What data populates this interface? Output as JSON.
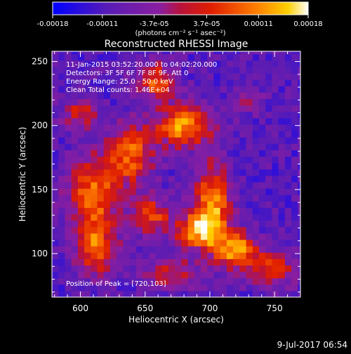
{
  "chart_data": {
    "type": "heatmap",
    "title": "Reconstructed RHESSI Image",
    "xlabel": "Heliocentric X (arcsec)",
    "ylabel": "Heliocentric Y (arcsec)",
    "xlim": [
      578,
      770
    ],
    "ylim": [
      66,
      258
    ],
    "x_ticks": [
      600,
      650,
      700,
      750
    ],
    "y_ticks": [
      100,
      150,
      200,
      250
    ],
    "colorbar": {
      "ticks": [
        "-0.00018",
        "-0.00011",
        "-3.7e-05",
        "3.7e-05",
        "0.00011",
        "0.00018"
      ],
      "tick_values": [
        -0.00018,
        -0.00011,
        -3.7e-05,
        3.7e-05,
        0.00011,
        0.00018
      ],
      "range": [
        -0.00018,
        0.00018
      ],
      "units": "(photons cm⁻² s⁻¹ asec⁻²)",
      "colors": [
        "#0000ff",
        "#5a1cb4",
        "#8a1ea0",
        "#b8123c",
        "#e01e00",
        "#ff8000",
        "#ffd000",
        "#ffffff"
      ]
    },
    "annotations": [
      "11-Jan-2015 03:52:20.000 to 04:02:20.000",
      "Detectors: 3F 5F 6F 7F 8F 9F, Att 0",
      "Energy Range: 25.0 - 50.0 keV",
      "Clean     Total counts: 1.46E+04",
      "Position of Peak = [720,103]"
    ],
    "peak": [
      720,
      103
    ],
    "intensity_grid_note": "pixel grid sampled at 5 arcsec",
    "timestamp": "9-Jul-2017 06:54"
  }
}
